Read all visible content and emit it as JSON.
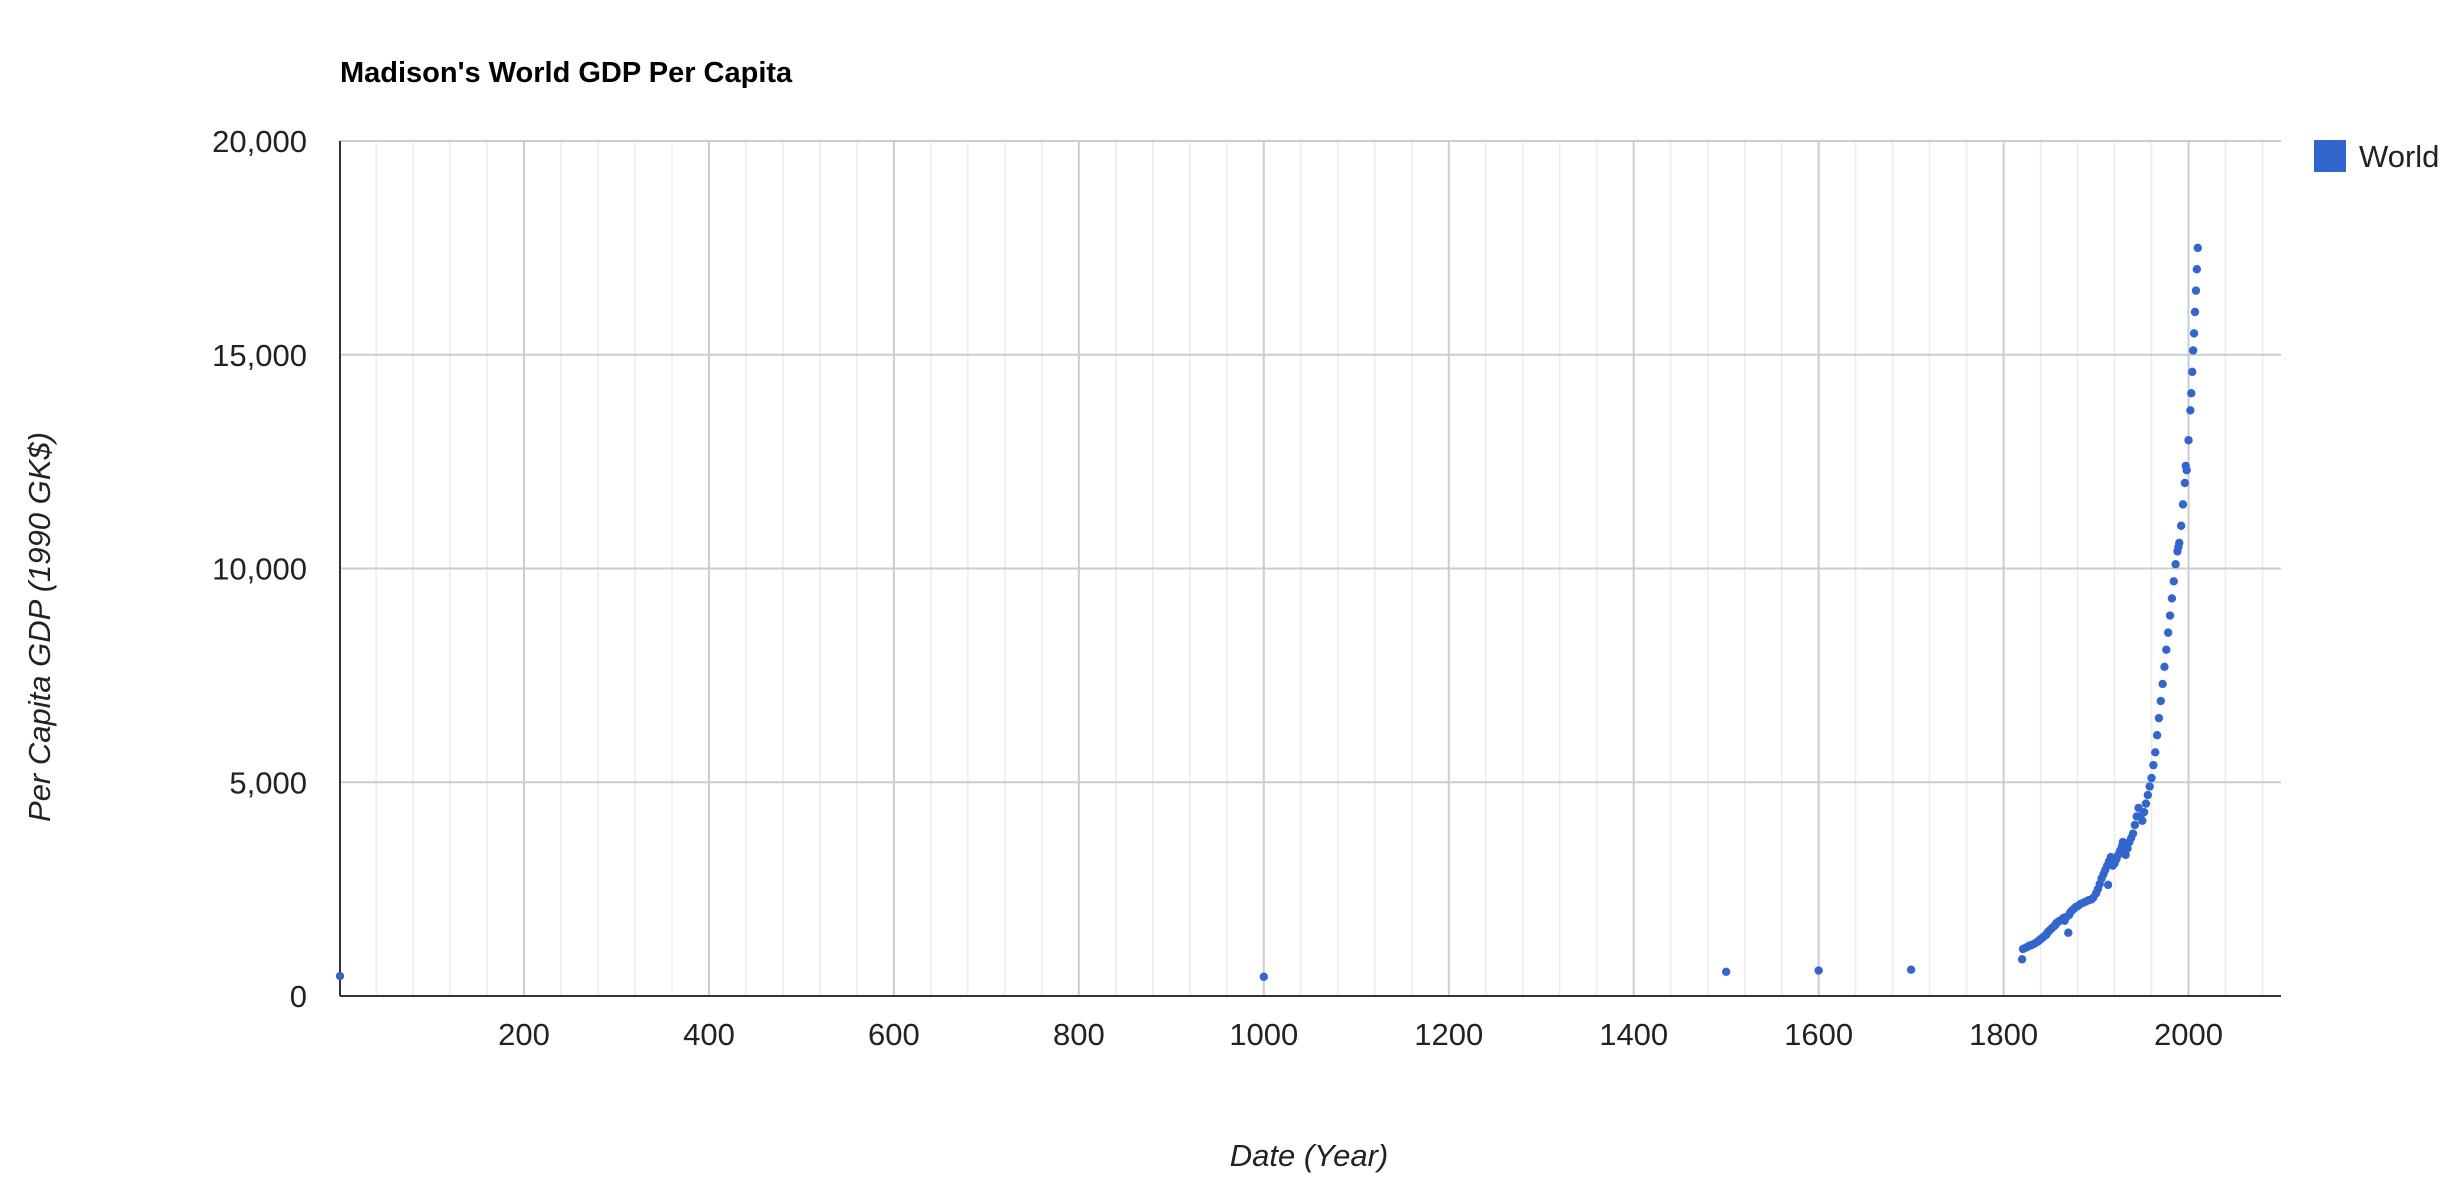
{
  "chart_data": {
    "type": "scatter",
    "title": "Madison's World GDP Per Capita",
    "xlabel": "Date (Year)",
    "ylabel": "Per Capita GDP (1990 GK$)",
    "xlim": [
      1,
      2100
    ],
    "ylim": [
      0,
      20000
    ],
    "x_ticks": [
      200,
      400,
      600,
      800,
      1000,
      1200,
      1400,
      1600,
      1800,
      2000
    ],
    "x_tick_labels": [
      "200",
      "400",
      "600",
      "800",
      "1000",
      "1200",
      "1400",
      "1600",
      "1800",
      "2000"
    ],
    "y_ticks": [
      0,
      5000,
      10000,
      15000,
      20000
    ],
    "y_tick_labels": [
      "0",
      "5,000",
      "10,000",
      "15,000",
      "20,000"
    ],
    "grid": true,
    "legend_position": "right",
    "series": [
      {
        "name": "World",
        "color": "#3366cc",
        "points": [
          [
            1,
            467
          ],
          [
            1000,
            450
          ],
          [
            1500,
            566
          ],
          [
            1600,
            596
          ],
          [
            1700,
            615
          ],
          [
            1820,
            858
          ],
          [
            1821,
            1100
          ],
          [
            1824,
            1130
          ],
          [
            1826,
            1150
          ],
          [
            1828,
            1180
          ],
          [
            1830,
            1190
          ],
          [
            1833,
            1220
          ],
          [
            1836,
            1260
          ],
          [
            1838,
            1290
          ],
          [
            1840,
            1330
          ],
          [
            1842,
            1360
          ],
          [
            1844,
            1400
          ],
          [
            1846,
            1430
          ],
          [
            1847,
            1460
          ],
          [
            1848,
            1500
          ],
          [
            1850,
            1540
          ],
          [
            1852,
            1580
          ],
          [
            1854,
            1620
          ],
          [
            1856,
            1660
          ],
          [
            1857,
            1700
          ],
          [
            1858,
            1720
          ],
          [
            1860,
            1750
          ],
          [
            1862,
            1770
          ],
          [
            1864,
            1800
          ],
          [
            1865,
            1830
          ],
          [
            1866,
            1760
          ],
          [
            1868,
            1850
          ],
          [
            1870,
            1480
          ],
          [
            1871,
            1900
          ],
          [
            1872,
            1950
          ],
          [
            1874,
            2000
          ],
          [
            1876,
            2040
          ],
          [
            1878,
            2080
          ],
          [
            1880,
            2100
          ],
          [
            1883,
            2150
          ],
          [
            1886,
            2180
          ],
          [
            1889,
            2210
          ],
          [
            1892,
            2240
          ],
          [
            1895,
            2260
          ],
          [
            1897,
            2300
          ],
          [
            1900,
            2400
          ],
          [
            1902,
            2500
          ],
          [
            1904,
            2620
          ],
          [
            1906,
            2750
          ],
          [
            1908,
            2850
          ],
          [
            1910,
            2950
          ],
          [
            1912,
            3050
          ],
          [
            1913,
            2600
          ],
          [
            1914,
            3150
          ],
          [
            1916,
            3250
          ],
          [
            1918,
            3050
          ],
          [
            1920,
            3100
          ],
          [
            1922,
            3200
          ],
          [
            1924,
            3300
          ],
          [
            1926,
            3400
          ],
          [
            1928,
            3500
          ],
          [
            1929,
            3600
          ],
          [
            1930,
            3400
          ],
          [
            1932,
            3300
          ],
          [
            1934,
            3450
          ],
          [
            1936,
            3600
          ],
          [
            1938,
            3700
          ],
          [
            1940,
            3800
          ],
          [
            1942,
            4000
          ],
          [
            1944,
            4200
          ],
          [
            1946,
            4400
          ],
          [
            1948,
            4200
          ],
          [
            1950,
            4100
          ],
          [
            1952,
            4300
          ],
          [
            1954,
            4500
          ],
          [
            1956,
            4700
          ],
          [
            1958,
            4900
          ],
          [
            1960,
            5100
          ],
          [
            1962,
            5400
          ],
          [
            1964,
            5700
          ],
          [
            1966,
            6100
          ],
          [
            1968,
            6500
          ],
          [
            1970,
            6900
          ],
          [
            1972,
            7300
          ],
          [
            1974,
            7700
          ],
          [
            1976,
            8100
          ],
          [
            1978,
            8500
          ],
          [
            1980,
            8900
          ],
          [
            1982,
            9300
          ],
          [
            1984,
            9700
          ],
          [
            1986,
            10100
          ],
          [
            1988,
            10400
          ],
          [
            1989,
            10500
          ],
          [
            1990,
            10600
          ],
          [
            1992,
            11000
          ],
          [
            1994,
            11500
          ],
          [
            1996,
            12000
          ],
          [
            1997,
            12400
          ],
          [
            1998,
            12300
          ],
          [
            2000,
            13000
          ],
          [
            2002,
            13700
          ],
          [
            2003,
            14100
          ],
          [
            2004,
            14600
          ],
          [
            2005,
            15100
          ],
          [
            2006,
            15500
          ],
          [
            2007,
            16000
          ],
          [
            2008,
            16500
          ],
          [
            2009,
            17000
          ],
          [
            2010,
            17500
          ]
        ]
      }
    ]
  }
}
